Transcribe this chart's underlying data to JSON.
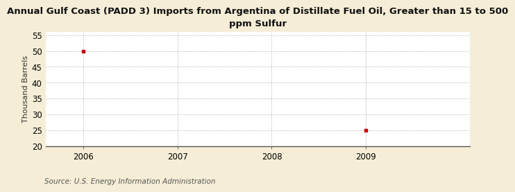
{
  "title": "Annual Gulf Coast (PADD 3) Imports from Argentina of Distillate Fuel Oil, Greater than 15 to 500\nppm Sulfur",
  "ylabel": "Thousand Barrels",
  "source": "Source: U.S. Energy Information Administration",
  "x_data": [
    2006,
    2009
  ],
  "y_data": [
    50,
    25
  ],
  "xlim": [
    2005.6,
    2010.1
  ],
  "ylim_bottom": 20,
  "ylim_top": 56,
  "yticks": [
    20,
    25,
    30,
    35,
    40,
    45,
    50,
    55
  ],
  "xticks": [
    2006,
    2007,
    2008,
    2009
  ],
  "outer_bg_color": "#F5EDD6",
  "plot_bg_color": "#FFFFFF",
  "marker_color": "#CC0000",
  "grid_color": "#AAAAAA",
  "title_fontsize": 9.5,
  "label_fontsize": 8,
  "tick_fontsize": 8.5,
  "source_fontsize": 7.5
}
